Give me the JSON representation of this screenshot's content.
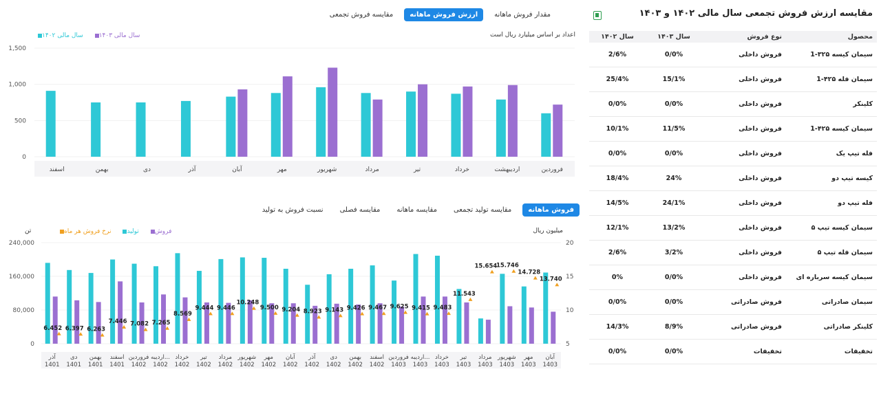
{
  "top_tabs": [
    "مقدار فروش ماهانه",
    "ارزش فروش ماهانه",
    "مقایسه فروش تجمعی"
  ],
  "top_active": 1,
  "top_note": "اعداد بر اساس میلیارد ریال است",
  "bottom_tabs": [
    "فروش ماهانه",
    "مقایسه تولید تجمعی",
    "مقایسه ماهانه",
    "مقایسه فصلی",
    "نسبت فروش به تولید"
  ],
  "bottom_active": 0,
  "bottom_left_unit": "تن",
  "bottom_right_unit": "میلیون ریال",
  "table": {
    "title": "مقایسه ارزش فروش تجمعی سال مالی ۱۴۰۲ و ۱۴۰۳",
    "export_icon": "excel-icon",
    "headers": [
      "محصول",
      "نوع فروش",
      "سال ۱۴۰۳",
      "سال ۱۴۰۲"
    ],
    "rows": [
      [
        "سیمان کیسه ۳۲۵-1",
        "فروش داخلی",
        "0/0%",
        "2/6%"
      ],
      [
        "سیمان فله ۴۲۵-1",
        "فروش داخلی",
        "15/1%",
        "25/4%"
      ],
      [
        "کلینکر",
        "فروش داخلی",
        "0/0%",
        "0/0%"
      ],
      [
        "سیمان کیسه ۴۲۵-1",
        "فروش داخلی",
        "11/5%",
        "10/1%"
      ],
      [
        "فله تیپ یک",
        "فروش داخلی",
        "0/0%",
        "0/0%"
      ],
      [
        "کیسه تیپ دو",
        "فروش داخلی",
        "24%",
        "18/4%"
      ],
      [
        "فله تیپ دو",
        "فروش داخلی",
        "24/1%",
        "14/5%"
      ],
      [
        "سیمان کیسه تیپ ۵",
        "فروش داخلی",
        "13/2%",
        "12/1%"
      ],
      [
        "سیمان فله تیپ ۵",
        "فروش داخلی",
        "3/2%",
        "2/6%"
      ],
      [
        "سیمان کیسه سرباره ای",
        "فروش داخلی",
        "0/0%",
        "0%"
      ],
      [
        "سیمان صادراتی",
        "فروش صادراتی",
        "0/0%",
        "0/0%"
      ],
      [
        "کلینکر صادراتی",
        "فروش صادراتی",
        "8/9%",
        "14/3%"
      ],
      [
        "تخفیفات",
        "تخفیفات",
        "0/0%",
        "0/0%"
      ]
    ]
  },
  "chart_data": [
    {
      "type": "bar",
      "categories": [
        "فروردین",
        "اردیبهشت",
        "خرداد",
        "تیر",
        "مرداد",
        "شهریور",
        "مهر",
        "آبان",
        "آذر",
        "دی",
        "بهمن",
        "اسفند"
      ],
      "series": [
        {
          "name": "سال مالی ۱۴۰۲",
          "color": "#2ec8d6",
          "values": [
            600,
            790,
            870,
            900,
            880,
            960,
            880,
            830,
            770,
            750,
            750,
            910
          ]
        },
        {
          "name": "سال مالی ۱۴۰۳",
          "color": "#9b6fd1",
          "values": [
            720,
            990,
            970,
            1000,
            790,
            1230,
            1110,
            930,
            null,
            null,
            null,
            null
          ]
        }
      ],
      "yticks": [
        "1,500",
        "1,000",
        "500",
        "0"
      ],
      "ylim": [
        0,
        1500
      ],
      "legend_position": "top-left"
    },
    {
      "type": "bar",
      "categories": [
        [
          "آذر",
          "1401"
        ],
        [
          "دی",
          "1401"
        ],
        [
          "بهمن",
          "1401"
        ],
        [
          "اسفند",
          "1401"
        ],
        [
          "فروردین",
          "1402"
        ],
        [
          "اردیبه...",
          "1402"
        ],
        [
          "خرداد",
          "1402"
        ],
        [
          "تیر",
          "1402"
        ],
        [
          "مرداد",
          "1402"
        ],
        [
          "شهریور",
          "1402"
        ],
        [
          "مهر",
          "1402"
        ],
        [
          "آبان",
          "1402"
        ],
        [
          "آذر",
          "1402"
        ],
        [
          "دی",
          "1402"
        ],
        [
          "بهمن",
          "1402"
        ],
        [
          "اسفند",
          "1402"
        ],
        [
          "فروردین",
          "1403"
        ],
        [
          "اردیبه...",
          "1403"
        ],
        [
          "خرداد",
          "1403"
        ],
        [
          "تیر",
          "1403"
        ],
        [
          "مرداد",
          "1403"
        ],
        [
          "شهریور",
          "1403"
        ],
        [
          "مهر",
          "1403"
        ],
        [
          "آبان",
          "1403"
        ]
      ],
      "series": [
        {
          "name": "تولید",
          "color": "#2ec8d6",
          "values": [
            192000,
            175000,
            168000,
            200000,
            190000,
            184000,
            215000,
            173000,
            201000,
            205000,
            204000,
            178000,
            140000,
            165000,
            178000,
            186000,
            150000,
            213000,
            209000,
            130000,
            60000,
            166000,
            136000,
            169000
          ]
        },
        {
          "name": "فروش",
          "color": "#9b6fd1",
          "values": [
            112000,
            103000,
            99000,
            148000,
            98000,
            117000,
            110000,
            98000,
            97000,
            103000,
            96000,
            96000,
            90000,
            95000,
            93000,
            96000,
            88000,
            112000,
            112000,
            98000,
            57000,
            89000,
            86000,
            76000
          ]
        },
        {
          "name": "نرخ فروش هر ماه",
          "color": "#f0a020",
          "values": [
            6.452,
            6.397,
            6.263,
            7.446,
            7.082,
            7.265,
            8.569,
            9.444,
            9.446,
            10.248,
            9.5,
            9.204,
            8.923,
            9.143,
            9.426,
            9.467,
            9.625,
            9.415,
            9.483,
            11.543,
            15.654,
            15.746,
            14.728,
            13.74
          ]
        }
      ],
      "value_labels": [
        "6.452",
        "6.397",
        "6.263",
        "7.446",
        "7.082",
        "7.265",
        "8.569",
        "9.444",
        "9.446",
        "10.248",
        "9.500",
        "9.204",
        "8.923",
        "9.143",
        "9.426",
        "9.467",
        "9.625",
        "9.415",
        "9.483",
        "11.543",
        "15.654",
        "15.746",
        "14.728",
        "13.740"
      ],
      "yticks_left": [
        "240,000",
        "160,000",
        "80,000",
        "0"
      ],
      "yticks_right": [
        "20",
        "15",
        "10",
        "5"
      ],
      "ylim_left": [
        0,
        240000
      ],
      "ylim_right": [
        5,
        20
      ],
      "legend_position": "top-left"
    }
  ]
}
